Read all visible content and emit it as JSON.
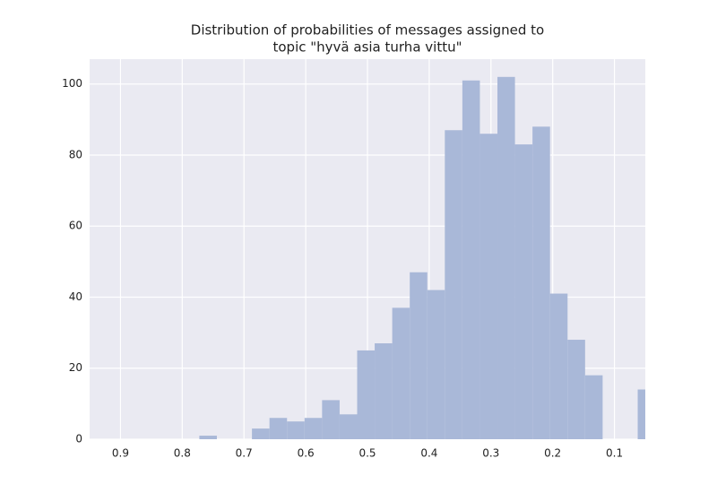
{
  "chart_data": {
    "type": "histogram",
    "title": [
      "Distribution of probabilities of messages assigned to",
      "topic \"hyvä asia turha vittu\""
    ],
    "bins": [
      0.0339,
      0.0623,
      0.0907,
      0.1191,
      0.1475,
      0.1759,
      0.2043,
      0.2327,
      0.2611,
      0.2895,
      0.3179,
      0.3463,
      0.3747,
      0.4031,
      0.4315,
      0.4599,
      0.4883,
      0.5167,
      0.5451,
      0.5735,
      0.6019,
      0.6303,
      0.6587,
      0.6871,
      0.7155,
      0.7439,
      0.7723
    ],
    "values": [
      14,
      0,
      0,
      18,
      28,
      41,
      88,
      83,
      102,
      86,
      101,
      87,
      42,
      47,
      37,
      27,
      25,
      7,
      11,
      6,
      5,
      6,
      3,
      0,
      0,
      1
    ],
    "color": "#a9b8d8",
    "xlim": [
      0.95,
      0.05
    ],
    "xticks": [
      0.9,
      0.8,
      0.7,
      0.6,
      0.5,
      0.4,
      0.3,
      0.2,
      0.1
    ],
    "ylim": [
      0,
      107
    ],
    "yticks": [
      0,
      20,
      40,
      60,
      80,
      100
    ],
    "grid": true
  }
}
